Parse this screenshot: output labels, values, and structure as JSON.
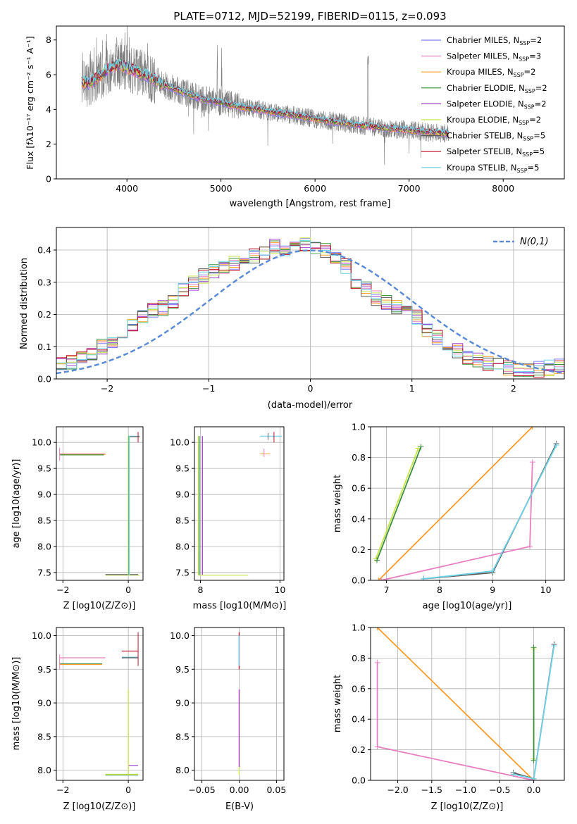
{
  "colors": {
    "chabrier_miles": "#7f7fff",
    "salpeter_miles": "#e87fbf",
    "kroupa_miles": "#ff9c2a",
    "chabrier_elodie": "#3f8f3f",
    "salpeter_elodie": "#a03fcf",
    "kroupa_elodie": "#c8e64d",
    "chabrier_stelib": "#5a5a5a",
    "salpeter_stelib": "#c0102a",
    "kroupa_stelib": "#6fd2e6",
    "data": "#808080",
    "normal": "#5b8bd6",
    "grid": "#b0b0b0"
  },
  "legend_entries": [
    "Chabrier MILES, N_SSP=2",
    "Salpeter MILES, N_SSP=3",
    "Kroupa MILES, N_SSP=2",
    "Chabrier ELODIE, N_SSP=2",
    "Salpeter ELODIE, N_SSP=2",
    "Kroupa ELODIE, N_SSP=2",
    "Chabrier STELIB, N_SSP=5",
    "Salpeter STELIB, N_SSP=5",
    "Kroupa STELIB, N_SSP=5"
  ],
  "chart_data": [
    {
      "id": "spectrum",
      "type": "line",
      "title": "PLATE=0712, MJD=52199, FIBERID=0115, z=0.093",
      "xlabel": "wavelength [Angstrom, rest frame]",
      "ylabel": "Flux [fλ10⁻¹⁷ erg cm⁻² s⁻¹ A⁻¹]",
      "xlim": [
        3250,
        8650
      ],
      "ylim": [
        0,
        8.8
      ],
      "xticks": [
        4000,
        5000,
        6000,
        7000,
        8000
      ],
      "yticks": [
        0,
        2,
        4,
        6,
        8
      ],
      "grid": false,
      "legend": "upper right",
      "data_range": [
        3520,
        7420
      ],
      "continuum_x": [
        3520,
        3600,
        3700,
        3800,
        3900,
        4000,
        4200,
        4400,
        4600,
        4800,
        5000,
        5200,
        5400,
        5600,
        5800,
        6000,
        6200,
        6400,
        6600,
        6800,
        7000,
        7200,
        7420
      ],
      "continuum_y": [
        5.6,
        5.5,
        5.9,
        6.3,
        6.6,
        6.4,
        6.0,
        5.4,
        5.0,
        4.6,
        4.4,
        4.15,
        4.0,
        3.8,
        3.65,
        3.45,
        3.3,
        3.15,
        3.0,
        2.9,
        2.8,
        2.7,
        2.6
      ]
    },
    {
      "id": "residuals",
      "type": "line",
      "xlabel": "(data-model)/error",
      "ylabel": "Normed distribution",
      "xlim": [
        -2.5,
        2.5
      ],
      "ylim": [
        0,
        0.47
      ],
      "xticks": [
        -2,
        -1,
        0,
        1,
        2
      ],
      "yticks": [
        0.0,
        0.1,
        0.2,
        0.3,
        0.4
      ],
      "grid": true,
      "legend": "upper right",
      "normal_label": "N(0,1)",
      "histogram_centers": [
        -2.45,
        -2.35,
        -2.25,
        -2.15,
        -2.05,
        -1.95,
        -1.85,
        -1.75,
        -1.65,
        -1.55,
        -1.45,
        -1.35,
        -1.25,
        -1.15,
        -1.05,
        -0.95,
        -0.85,
        -0.75,
        -0.65,
        -0.55,
        -0.45,
        -0.35,
        -0.25,
        -0.15,
        -0.05,
        0.05,
        0.15,
        0.25,
        0.35,
        0.45,
        0.55,
        0.65,
        0.75,
        0.85,
        0.95,
        1.05,
        1.15,
        1.25,
        1.35,
        1.45,
        1.55,
        1.65,
        1.75,
        1.85,
        1.95,
        2.05,
        2.15,
        2.25,
        2.35,
        2.45
      ],
      "histogram_base": [
        0.045,
        0.05,
        0.065,
        0.075,
        0.1,
        0.12,
        0.15,
        0.17,
        0.19,
        0.21,
        0.22,
        0.24,
        0.28,
        0.3,
        0.32,
        0.33,
        0.35,
        0.36,
        0.37,
        0.38,
        0.39,
        0.41,
        0.4,
        0.41,
        0.42,
        0.41,
        0.4,
        0.38,
        0.35,
        0.3,
        0.28,
        0.25,
        0.24,
        0.22,
        0.21,
        0.19,
        0.15,
        0.13,
        0.1,
        0.085,
        0.07,
        0.06,
        0.05,
        0.04,
        0.035,
        0.03,
        0.03,
        0.03,
        0.035,
        0.04
      ]
    },
    {
      "id": "age-vs-Z",
      "type": "scatter",
      "xlabel": "Z [log10(Z/Z⊙)]",
      "ylabel": "age  [log10(age/yr)]",
      "xlim": [
        -2.2,
        0.45
      ],
      "ylim": [
        7.35,
        10.3
      ],
      "xticks": [
        -2,
        0
      ],
      "yticks": [
        7.5,
        8.0,
        8.5,
        9.0,
        9.5,
        10.0
      ],
      "grid": true
    },
    {
      "id": "age-vs-mass",
      "type": "scatter",
      "xlabel": "mass [log10(M/M⊙)]",
      "xlim": [
        7.85,
        10.1
      ],
      "ylim": [
        7.35,
        10.3
      ],
      "xticks": [
        8,
        10
      ],
      "yticks": [
        7.5,
        8.0,
        8.5,
        9.0,
        9.5,
        10.0
      ],
      "grid": true
    },
    {
      "id": "weight-vs-age",
      "type": "line",
      "xlabel": "age  [log10(age/yr)]",
      "ylabel": "mass weight",
      "xlim": [
        6.7,
        10.35
      ],
      "ylim": [
        0,
        1.0
      ],
      "xticks": [
        7,
        8,
        9,
        10
      ],
      "yticks": [
        0.0,
        0.2,
        0.4,
        0.6,
        0.8,
        1.0
      ],
      "grid": true
    },
    {
      "id": "mass-vs-Z",
      "type": "scatter",
      "xlabel": "Z [log10(Z/Z⊙)]",
      "ylabel": "mass [log10(M/M⊙)]",
      "xlim": [
        -2.2,
        0.45
      ],
      "ylim": [
        7.85,
        10.12
      ],
      "xticks": [
        -2,
        0
      ],
      "yticks": [
        8.0,
        8.5,
        9.0,
        9.5,
        10.0
      ],
      "grid": true
    },
    {
      "id": "mass-vs-EBV",
      "type": "scatter",
      "xlabel": "E(B-V)",
      "xlim": [
        -0.06,
        0.06
      ],
      "ylim": [
        7.85,
        10.12
      ],
      "xticks": [
        -0.05,
        0.0,
        0.05
      ],
      "yticks": [
        8.0,
        8.5,
        9.0,
        9.5,
        10.0
      ],
      "grid": true
    },
    {
      "id": "weight-vs-Z",
      "type": "line",
      "xlabel": "Z [log10(Z/Z⊙)]",
      "ylabel": "mass weight",
      "xlim": [
        -2.4,
        0.45
      ],
      "ylim": [
        0,
        1.0
      ],
      "xticks": [
        -2.0,
        -1.5,
        -1.0,
        -0.5,
        0.0
      ],
      "yticks": [
        0.0,
        0.2,
        0.4,
        0.6,
        0.8,
        1.0
      ],
      "grid": true
    }
  ]
}
